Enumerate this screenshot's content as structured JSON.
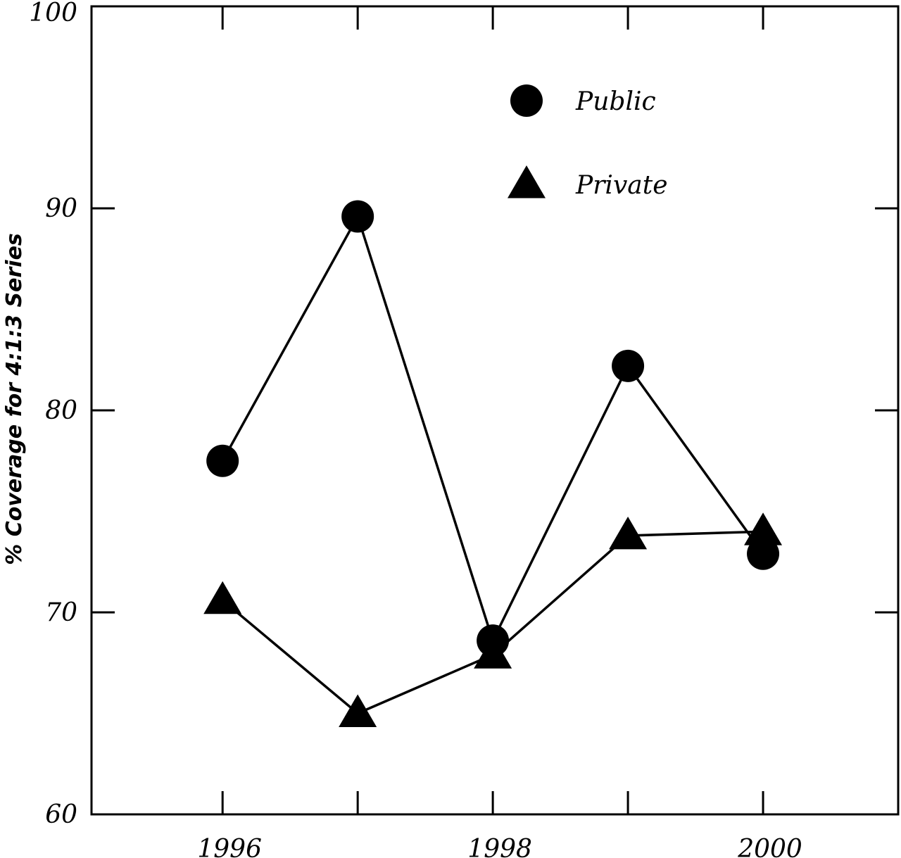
{
  "chart_data": {
    "type": "line",
    "title": "",
    "xlabel": "",
    "ylabel": "% Coverage for 4:1:3 Series",
    "x": [
      1996,
      1997,
      1998,
      1999,
      2000
    ],
    "xlim": [
      1995.03,
      2001.0
    ],
    "ylim": [
      60,
      100
    ],
    "x_tick_values": [
      1996,
      1998,
      2000
    ],
    "x_tick_labels": [
      "1996",
      "1998",
      "2000"
    ],
    "y_tick_values": [
      60,
      70,
      80,
      90,
      100
    ],
    "y_tick_labels": [
      "60",
      "70",
      "80",
      "90",
      "100"
    ],
    "grid": false,
    "legend": "upper-center",
    "series": [
      {
        "name": "Public",
        "marker": "circle",
        "values": [
          77.5,
          89.6,
          68.6,
          82.2,
          72.9
        ]
      },
      {
        "name": "Private",
        "marker": "triangle",
        "values": [
          70.6,
          65.0,
          67.9,
          73.8,
          74.0
        ]
      }
    ],
    "colors": {
      "line": "#000000",
      "marker": "#000000"
    }
  }
}
